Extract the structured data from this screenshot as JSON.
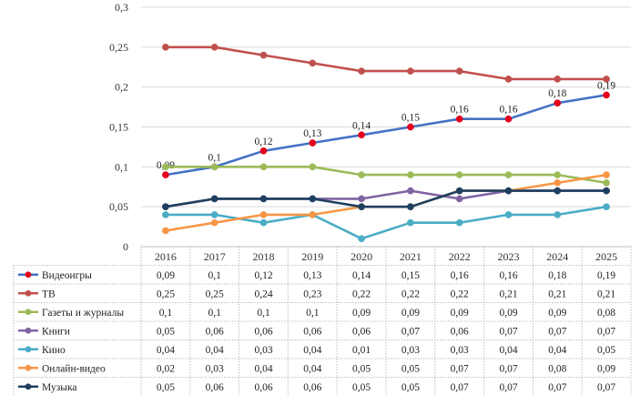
{
  "chart_data": {
    "type": "line",
    "title": "",
    "xlabel": "",
    "ylabel": "",
    "ylim": [
      0,
      0.3
    ],
    "y_ticks": [
      "0",
      "0,05",
      "0,1",
      "0,15",
      "0,2",
      "0,25",
      "0,3"
    ],
    "grid": "horizontal",
    "legend": "data-table",
    "categories": [
      "2016",
      "2017",
      "2018",
      "2019",
      "2020",
      "2021",
      "2022",
      "2023",
      "2024",
      "2025"
    ],
    "series": [
      {
        "name": "Видеоигры",
        "color": "#4472c4",
        "marker_color": "#e4001b",
        "values": [
          0.09,
          0.1,
          0.12,
          0.13,
          0.14,
          0.15,
          0.16,
          0.16,
          0.18,
          0.19
        ],
        "labels": [
          "0,09",
          "0,1",
          "0,12",
          "0,13",
          "0,14",
          "0,15",
          "0,16",
          "0,16",
          "0,18",
          "0,19"
        ],
        "data_labels": true
      },
      {
        "name": "ТВ",
        "color": "#c0504d",
        "marker_color": "#c0504d",
        "values": [
          0.25,
          0.25,
          0.24,
          0.23,
          0.22,
          0.22,
          0.22,
          0.21,
          0.21,
          0.21
        ],
        "labels": [
          "0,25",
          "0,25",
          "0,24",
          "0,23",
          "0,22",
          "0,22",
          "0,22",
          "0,21",
          "0,21",
          "0,21"
        ]
      },
      {
        "name": "Газеты и журналы",
        "color": "#9bbb59",
        "marker_color": "#9bbb59",
        "values": [
          0.1,
          0.1,
          0.1,
          0.1,
          0.09,
          0.09,
          0.09,
          0.09,
          0.09,
          0.08
        ],
        "labels": [
          "0,1",
          "0,1",
          "0,1",
          "0,1",
          "0,09",
          "0,09",
          "0,09",
          "0,09",
          "0,09",
          "0,08"
        ]
      },
      {
        "name": "Книги",
        "color": "#8064a2",
        "marker_color": "#8064a2",
        "values": [
          0.05,
          0.06,
          0.06,
          0.06,
          0.06,
          0.07,
          0.06,
          0.07,
          0.07,
          0.07
        ],
        "labels": [
          "0,05",
          "0,06",
          "0,06",
          "0,06",
          "0,06",
          "0,07",
          "0,06",
          "0,07",
          "0,07",
          "0,07"
        ]
      },
      {
        "name": "Кино",
        "color": "#4bacc6",
        "marker_color": "#4bacc6",
        "values": [
          0.04,
          0.04,
          0.03,
          0.04,
          0.01,
          0.03,
          0.03,
          0.04,
          0.04,
          0.05
        ],
        "labels": [
          "0,04",
          "0,04",
          "0,03",
          "0,04",
          "0,01",
          "0,03",
          "0,03",
          "0,04",
          "0,04",
          "0,05"
        ]
      },
      {
        "name": "Онлайн-видео",
        "color": "#f79646",
        "marker_color": "#f79646",
        "values": [
          0.02,
          0.03,
          0.04,
          0.04,
          0.05,
          0.05,
          0.07,
          0.07,
          0.08,
          0.09
        ],
        "labels": [
          "0,02",
          "0,03",
          "0,04",
          "0,04",
          "0,05",
          "0,05",
          "0,07",
          "0,07",
          "0,08",
          "0,09"
        ]
      },
      {
        "name": "Музыка",
        "color": "#1f3f60",
        "marker_color": "#1f3f60",
        "values": [
          0.05,
          0.06,
          0.06,
          0.06,
          0.05,
          0.05,
          0.07,
          0.07,
          0.07,
          0.07
        ],
        "labels": [
          "0,05",
          "0,06",
          "0,06",
          "0,06",
          "0,05",
          "0,05",
          "0,07",
          "0,07",
          "0,07",
          "0,07"
        ]
      }
    ]
  }
}
